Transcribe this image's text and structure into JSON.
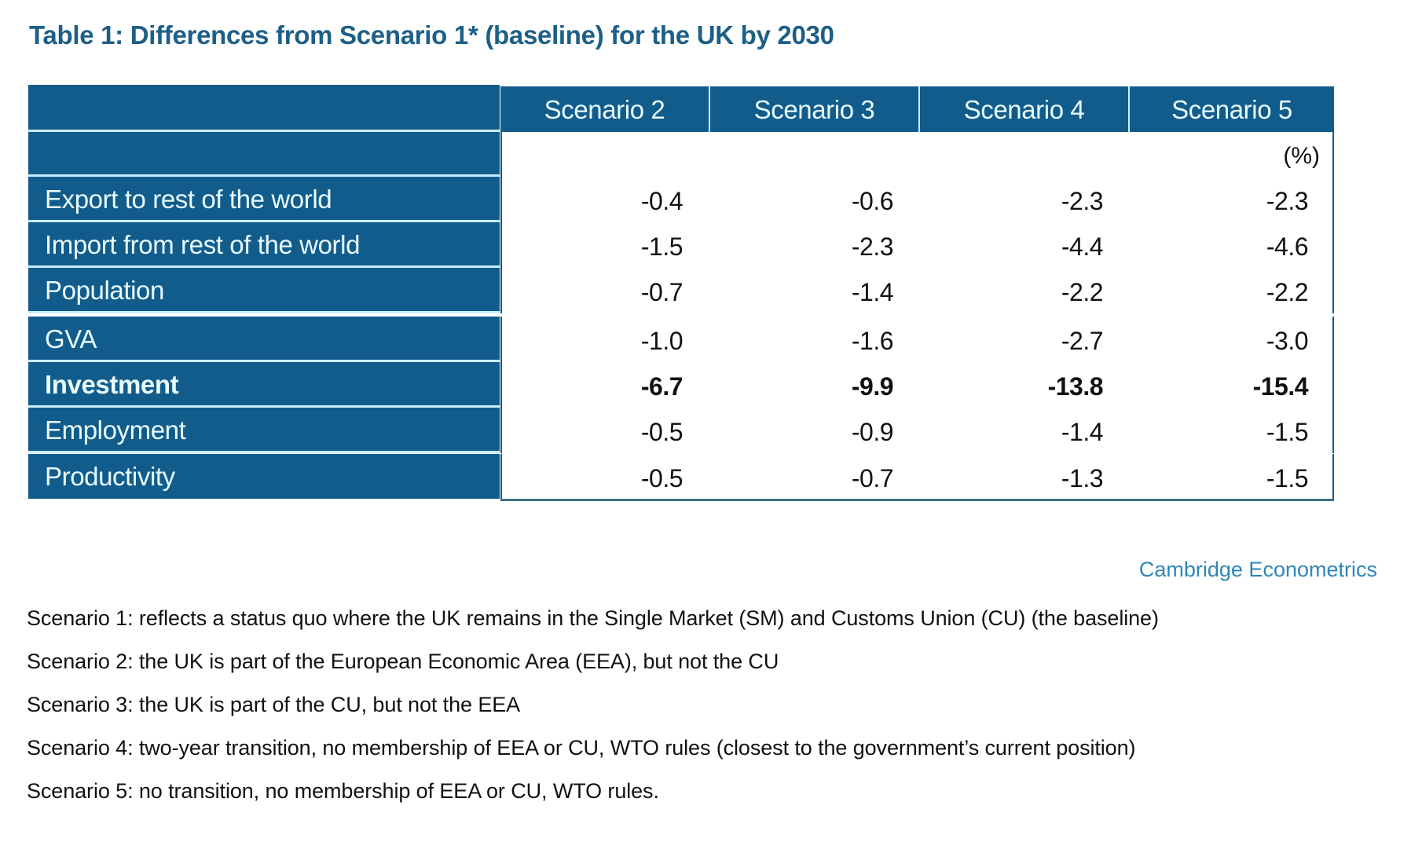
{
  "title": "Table 1: Differences from Scenario 1* (baseline) for the UK by 2030",
  "table": {
    "columns": [
      "Scenario 2",
      "Scenario 3",
      "Scenario 4",
      "Scenario 5"
    ],
    "unit": "(%)",
    "rows": [
      {
        "label": "Export to rest of the world",
        "values": [
          "-0.4",
          "-0.6",
          "-2.3",
          "-2.3"
        ],
        "bold": false
      },
      {
        "label": "Import from rest of the world",
        "values": [
          "-1.5",
          "-2.3",
          "-4.4",
          "-4.6"
        ],
        "bold": false
      },
      {
        "label": "Population",
        "values": [
          "-0.7",
          "-1.4",
          "-2.2",
          "-2.2"
        ],
        "bold": false
      },
      {
        "label": "GVA",
        "values": [
          "-1.0",
          "-1.6",
          "-2.7",
          "-3.0"
        ],
        "bold": false
      },
      {
        "label": "Investment",
        "values": [
          "-6.7",
          "-9.9",
          "-13.8",
          "-15.4"
        ],
        "bold": true
      },
      {
        "label": "Employment",
        "values": [
          "-0.5",
          "-0.9",
          "-1.4",
          "-1.5"
        ],
        "bold": false
      },
      {
        "label": "Productivity",
        "values": [
          "-0.5",
          "-0.7",
          "-1.3",
          "-1.5"
        ],
        "bold": false
      }
    ]
  },
  "source_credit": "Cambridge Econometrics",
  "notes": [
    "Scenario 1: reflects a status quo where the UK remains in the Single Market (SM) and Customs Union (CU) (the baseline)",
    "Scenario 2: the UK is part of the European Economic Area (EEA), but not the CU",
    "Scenario 3: the UK is part of the CU, but not the EEA",
    "Scenario 4: two-year transition, no membership of EEA or CU, WTO rules (closest to the government’s current position)",
    "Scenario 5: no transition, no membership of EEA or CU, WTO rules."
  ],
  "colors": {
    "header_bg": "#125c8c",
    "title": "#1d5f86",
    "credit": "#2d86b8"
  }
}
